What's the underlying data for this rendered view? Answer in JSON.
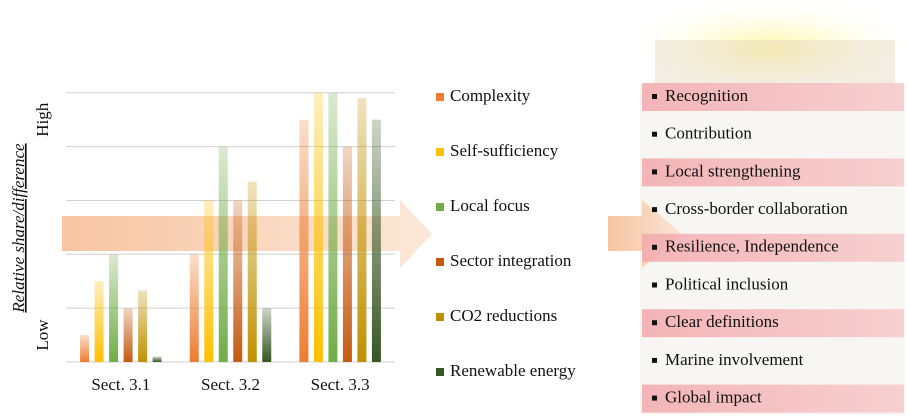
{
  "chart_data": {
    "type": "bar",
    "y_label": "Relative share/difference",
    "categories": [
      "Sect. 3.1",
      "Sect. 3.2",
      "Sect. 3.3"
    ],
    "series": [
      {
        "name": "Complexity",
        "color": "#ed7d31",
        "values": [
          0.5,
          2,
          4.5
        ]
      },
      {
        "name": "Self-sufficiency",
        "color": "#ffc000",
        "values": [
          1.5,
          3,
          5
        ]
      },
      {
        "name": "Local focus",
        "color": "#70ad47",
        "values": [
          2,
          4,
          5
        ]
      },
      {
        "name": "Sector integration",
        "color": "#c55a11",
        "values": [
          1,
          3,
          4
        ]
      },
      {
        "name": "CO2 reductions",
        "color": "#bf9000",
        "values": [
          1.33,
          3.35,
          4.9
        ]
      },
      {
        "name": "Renewable energy",
        "color": "#375623",
        "values": [
          0.1,
          1,
          4.5
        ]
      }
    ],
    "ylim": [
      0,
      5.2
    ],
    "yticks": [
      {
        "value": 0.5,
        "label": "Low"
      },
      {
        "value": 4.5,
        "label": "High"
      }
    ],
    "grid_values": [
      0,
      1,
      2,
      3,
      4,
      5
    ],
    "grid": true
  },
  "list": {
    "items": [
      "Recognition",
      "Contribution",
      "Local strengthening",
      "Cross-border collaboration",
      "Resilience, Independence",
      "Political inclusion",
      "Clear definitions",
      "Marine involvement",
      "Global impact"
    ]
  }
}
